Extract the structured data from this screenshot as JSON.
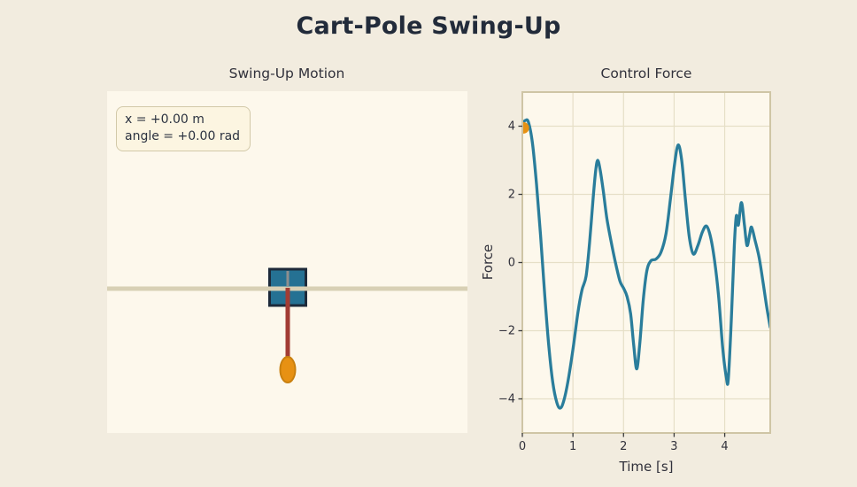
{
  "title": "Cart-Pole Swing-Up",
  "colors": {
    "page_bg": "#f2ecdf",
    "panel_bg": "#fdf8ec",
    "title_color": "#222b3a",
    "text_color": "#31313b",
    "grid_color": "#e6dfc7",
    "spine_color": "#cfc5a5",
    "tick_color": "#3b3b3b",
    "track_color": "#d8d0b5",
    "cart_fill": "#257193",
    "cart_border": "#1d2a3a",
    "pivot_gray": "#8e8e8e",
    "pole_color": "#a23c34",
    "bob_fill": "#e79113",
    "bob_border": "#c9800f",
    "line_color": "#2a7d9b",
    "marker_color": "#e79113",
    "box_bg": "#fcf5e1",
    "box_border": "#d2c9a9"
  },
  "sim_panel": {
    "title": "Swing-Up Motion",
    "state_box": {
      "line1": "x = +0.00 m",
      "line2": "angle = +0.00 rad"
    }
  },
  "chart_data": {
    "type": "line",
    "title": "Control Force",
    "xlabel": "Time [s]",
    "ylabel": "Force",
    "xlim": [
      0,
      4.9
    ],
    "ylim": [
      -5,
      5
    ],
    "xticks": [
      0,
      1,
      2,
      3,
      4
    ],
    "yticks": [
      4,
      2,
      0,
      -2,
      -4
    ],
    "grid": true,
    "legend": "none",
    "series": [
      {
        "name": "control-force",
        "color": "#2a7d9b",
        "x": [
          0.0,
          0.06,
          0.12,
          0.2,
          0.28,
          0.36,
          0.44,
          0.52,
          0.6,
          0.68,
          0.75,
          0.82,
          0.9,
          1.0,
          1.1,
          1.18,
          1.26,
          1.33,
          1.4,
          1.45,
          1.49,
          1.54,
          1.6,
          1.67,
          1.75,
          1.84,
          1.93,
          2.0,
          2.07,
          2.14,
          2.2,
          2.26,
          2.32,
          2.39,
          2.46,
          2.54,
          2.64,
          2.74,
          2.84,
          2.93,
          3.01,
          3.08,
          3.15,
          3.22,
          3.3,
          3.38,
          3.47,
          3.56,
          3.64,
          3.72,
          3.8,
          3.88,
          3.96,
          4.03,
          4.07,
          4.13,
          4.19,
          4.23,
          4.27,
          4.33,
          4.39,
          4.44,
          4.49,
          4.53,
          4.6,
          4.68,
          4.76,
          4.83,
          4.9
        ],
        "y": [
          4.08,
          4.17,
          4.12,
          3.5,
          2.3,
          0.8,
          -0.9,
          -2.4,
          -3.5,
          -4.1,
          -4.27,
          -4.05,
          -3.5,
          -2.55,
          -1.45,
          -0.8,
          -0.4,
          0.6,
          1.9,
          2.7,
          3.0,
          2.7,
          2.1,
          1.3,
          0.65,
          0.0,
          -0.55,
          -0.75,
          -1.0,
          -1.5,
          -2.4,
          -3.12,
          -2.4,
          -1.1,
          -0.25,
          0.05,
          0.1,
          0.3,
          0.85,
          1.9,
          2.9,
          3.45,
          3.0,
          1.9,
          0.75,
          0.25,
          0.5,
          0.9,
          1.07,
          0.75,
          0.05,
          -1.0,
          -2.5,
          -3.35,
          -3.44,
          -1.7,
          0.5,
          1.37,
          1.1,
          1.76,
          1.1,
          0.5,
          0.8,
          1.04,
          0.65,
          0.15,
          -0.6,
          -1.3,
          -1.9
        ]
      }
    ],
    "marker": {
      "name": "current-time-marker",
      "x": 0.02,
      "y": 3.95,
      "color": "#e79113",
      "radius": 6.5
    }
  }
}
